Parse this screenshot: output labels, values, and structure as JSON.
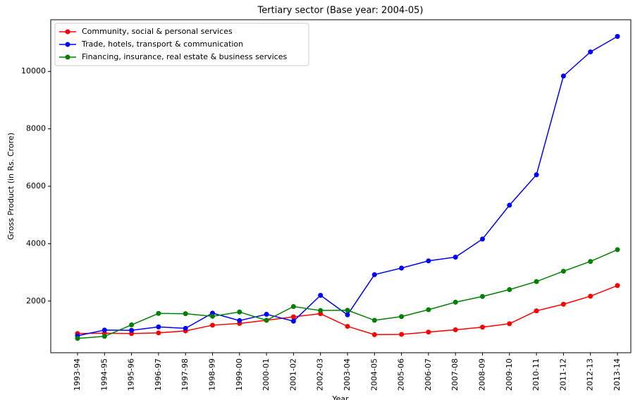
{
  "chart_data": {
    "type": "line",
    "title": "Tertiary sector (Base year: 2004-05)",
    "x_label": "Year",
    "y_label": "Gross Product (in Rs. Crore)",
    "categories": [
      "1993-94",
      "1994-95",
      "1995-96",
      "1996-97",
      "1997-98",
      "1998-99",
      "1999-00",
      "2000-01",
      "2001-02",
      "2002-03",
      "2003-04",
      "2004-05",
      "2005-06",
      "2006-07",
      "2007-08",
      "2008-09",
      "2009-10",
      "2010-11",
      "2011-12",
      "2012-13",
      "2013-14"
    ],
    "series": [
      {
        "name": "Community, social & personal services",
        "color": "#ff0000",
        "values": [
          870,
          880,
          870,
          890,
          960,
          1160,
          1220,
          1330,
          1450,
          1560,
          1120,
          830,
          840,
          920,
          1000,
          1090,
          1210,
          1660,
          1890,
          2170,
          2540
        ]
      },
      {
        "name": "Trade, hotels, transport & communication",
        "color": "#0000ff",
        "values": [
          790,
          990,
          980,
          1100,
          1050,
          1580,
          1320,
          1540,
          1300,
          2200,
          1520,
          2920,
          3150,
          3400,
          3530,
          4160,
          5340,
          6400,
          9840,
          10680,
          11220
        ]
      },
      {
        "name": "Financing, insurance, real estate & business services",
        "color": "#008000",
        "values": [
          700,
          770,
          1170,
          1570,
          1560,
          1470,
          1620,
          1330,
          1810,
          1670,
          1680,
          1330,
          1460,
          1700,
          1960,
          2160,
          2400,
          2680,
          3040,
          3380,
          3790
        ]
      }
    ],
    "ylim": [
      200,
      11800
    ],
    "yticks": [
      2000,
      4000,
      6000,
      8000,
      10000
    ],
    "grid": false,
    "legend": "upper left"
  }
}
